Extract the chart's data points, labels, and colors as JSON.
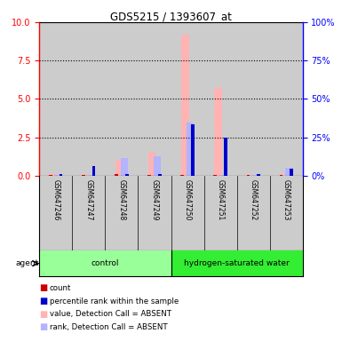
{
  "title": "GDS5215 / 1393607_at",
  "samples": [
    "GSM647246",
    "GSM647247",
    "GSM647248",
    "GSM647249",
    "GSM647250",
    "GSM647251",
    "GSM647252",
    "GSM647253"
  ],
  "groups": [
    "control",
    "control",
    "control",
    "control",
    "hydrogen-saturated water",
    "hydrogen-saturated water",
    "hydrogen-saturated water",
    "hydrogen-saturated water"
  ],
  "count_values": [
    0.05,
    0.05,
    0.08,
    0.05,
    0.05,
    0.05,
    0.05,
    0.05
  ],
  "rank_values": [
    0.12,
    0.65,
    0.12,
    0.12,
    3.35,
    2.45,
    0.12,
    0.45
  ],
  "value_absent": [
    0.12,
    0.05,
    1.05,
    1.55,
    9.2,
    5.7,
    0.05,
    0.05
  ],
  "rank_absent": [
    0.05,
    0.05,
    1.15,
    1.25,
    3.45,
    0.05,
    0.05,
    0.5
  ],
  "ylim_left": [
    0,
    10
  ],
  "ylim_right": [
    0,
    100
  ],
  "yticks_left": [
    0,
    2.5,
    5,
    7.5,
    10
  ],
  "yticks_right": [
    0,
    25,
    50,
    75,
    100
  ],
  "color_count": "#cc0000",
  "color_rank": "#0000cc",
  "color_value_absent": "#ffb3b3",
  "color_rank_absent": "#b3b3ff",
  "group_colors": {
    "control": "#99ff99",
    "hydrogen-saturated water": "#33ee33"
  },
  "bar_bg_color": "#cccccc",
  "legend_items": [
    {
      "color": "#cc0000",
      "label": "count"
    },
    {
      "color": "#0000cc",
      "label": "percentile rank within the sample"
    },
    {
      "color": "#ffb3b3",
      "label": "value, Detection Call = ABSENT"
    },
    {
      "color": "#b3b3ff",
      "label": "rank, Detection Call = ABSENT"
    }
  ]
}
